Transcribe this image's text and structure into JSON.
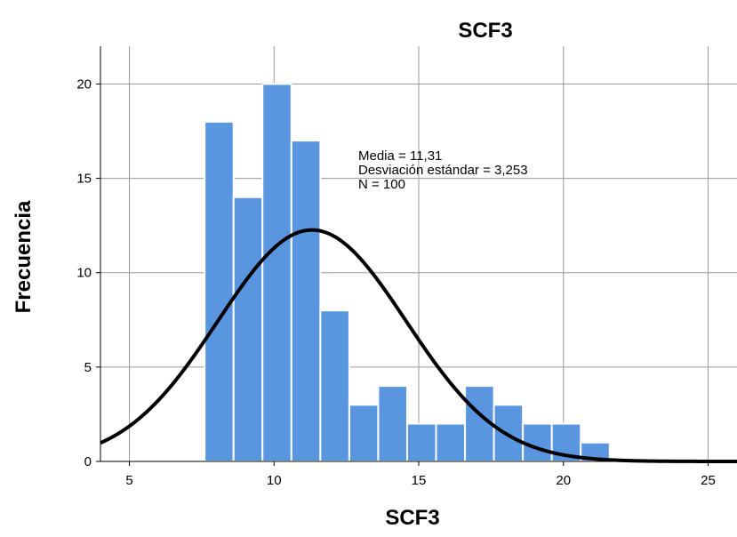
{
  "chart_data": {
    "type": "bar",
    "title": "SCF3",
    "xlabel": "SCF3",
    "ylabel": "Frecuencia",
    "xlim": [
      4,
      26
    ],
    "ylim": [
      0,
      22
    ],
    "x_ticks": [
      5,
      10,
      15,
      20,
      25
    ],
    "y_ticks": [
      0,
      5,
      10,
      15,
      20
    ],
    "grid": true,
    "bin_width": 1,
    "bins": [
      {
        "start": 7.6,
        "end": 8.6,
        "value": 18
      },
      {
        "start": 8.6,
        "end": 9.6,
        "value": 14
      },
      {
        "start": 9.6,
        "end": 10.6,
        "value": 20
      },
      {
        "start": 10.6,
        "end": 11.6,
        "value": 17
      },
      {
        "start": 11.6,
        "end": 12.6,
        "value": 8
      },
      {
        "start": 12.6,
        "end": 13.6,
        "value": 3
      },
      {
        "start": 13.6,
        "end": 14.6,
        "value": 4
      },
      {
        "start": 14.6,
        "end": 15.6,
        "value": 2
      },
      {
        "start": 15.6,
        "end": 16.6,
        "value": 2
      },
      {
        "start": 16.6,
        "end": 17.6,
        "value": 4
      },
      {
        "start": 17.6,
        "end": 18.6,
        "value": 3
      },
      {
        "start": 18.6,
        "end": 19.6,
        "value": 2
      },
      {
        "start": 19.6,
        "end": 20.6,
        "value": 2
      },
      {
        "start": 20.6,
        "end": 21.6,
        "value": 1
      }
    ],
    "normal_curve": {
      "mean": 11.31,
      "sd": 3.253,
      "n": 100
    },
    "stats_lines": [
      "Media = 11,31",
      "Desviación estándar = 3,253",
      "N = 100"
    ],
    "colors": {
      "bar_fill": "#5a96e0",
      "bar_stroke": "#ffffff",
      "curve": "#000000",
      "grid": "#999999"
    }
  }
}
